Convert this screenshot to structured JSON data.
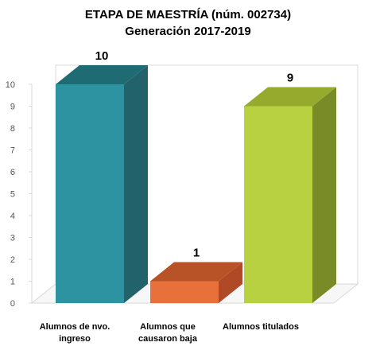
{
  "chart_data": {
    "type": "bar",
    "title_lines": [
      "ETAPA DE MAESTRÍA (núm. 002734)",
      "Generación 2017-2019"
    ],
    "categories": [
      "Alumnos de nvo. ingreso",
      "Alumnos que causaron baja",
      "Alumnos titulados"
    ],
    "category_lines": [
      [
        "Alumnos de nvo.",
        "ingreso"
      ],
      [
        "Alumnos que",
        "causaron baja"
      ],
      [
        "Alumnos titulados"
      ]
    ],
    "values": [
      10,
      1,
      9
    ],
    "data_labels": [
      "10",
      "1",
      "9"
    ],
    "ylim": [
      0,
      10
    ],
    "yticks": [
      "0",
      "1",
      "2",
      "3",
      "4",
      "5",
      "6",
      "7",
      "8",
      "9",
      "10"
    ],
    "grid": false,
    "style": "3d",
    "colors": [
      {
        "front": "#2E93A0",
        "top": "#1F6B74",
        "side": "#22626A"
      },
      {
        "front": "#E8703B",
        "top": "#B85227",
        "side": "#B04A26"
      },
      {
        "front": "#B8D140",
        "top": "#96AB2E",
        "side": "#788B26"
      }
    ]
  }
}
